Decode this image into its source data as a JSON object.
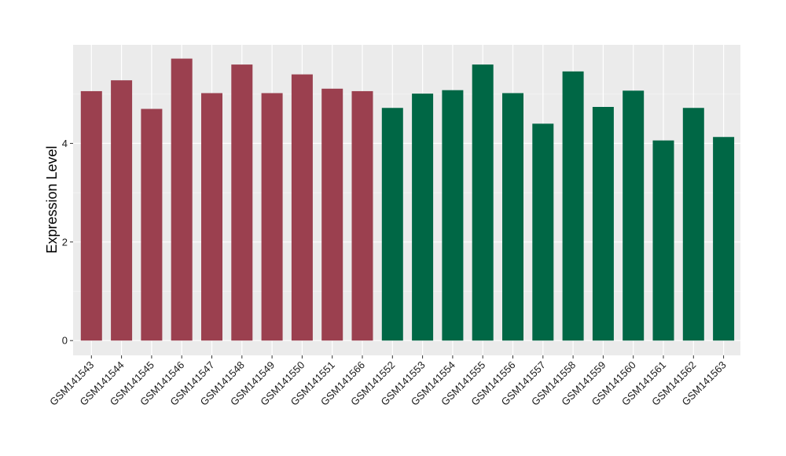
{
  "chart_data": {
    "type": "bar",
    "title": "",
    "xlabel": "",
    "ylabel": "Expression Level",
    "ylim": [
      -0.3,
      6.0
    ],
    "yticks": [
      0,
      2,
      4
    ],
    "ytick_labels": [
      "0",
      "2",
      "4"
    ],
    "grid": true,
    "categories": [
      "GSM141543",
      "GSM141544",
      "GSM141545",
      "GSM141546",
      "GSM141547",
      "GSM141548",
      "GSM141549",
      "GSM141550",
      "GSM141551",
      "GSM141566",
      "GSM141552",
      "GSM141553",
      "GSM141554",
      "GSM141555",
      "GSM141556",
      "GSM141557",
      "GSM141558",
      "GSM141559",
      "GSM141560",
      "GSM141561",
      "GSM141562",
      "GSM141563"
    ],
    "values": [
      5.06,
      5.28,
      4.7,
      5.72,
      5.02,
      5.6,
      5.02,
      5.4,
      5.11,
      5.06,
      4.72,
      5.01,
      5.08,
      5.6,
      5.02,
      4.4,
      5.46,
      4.74,
      5.07,
      4.06,
      4.72,
      4.13
    ],
    "groups": [
      "A",
      "A",
      "A",
      "A",
      "A",
      "A",
      "A",
      "A",
      "A",
      "A",
      "B",
      "B",
      "B",
      "B",
      "B",
      "B",
      "B",
      "B",
      "B",
      "B",
      "B",
      "B"
    ],
    "colors": {
      "A": "#9b404f",
      "B": "#006745",
      "panel": "#ebebeb",
      "grid_major": "#ffffff",
      "grid_minor": "#f5f5f5"
    }
  }
}
